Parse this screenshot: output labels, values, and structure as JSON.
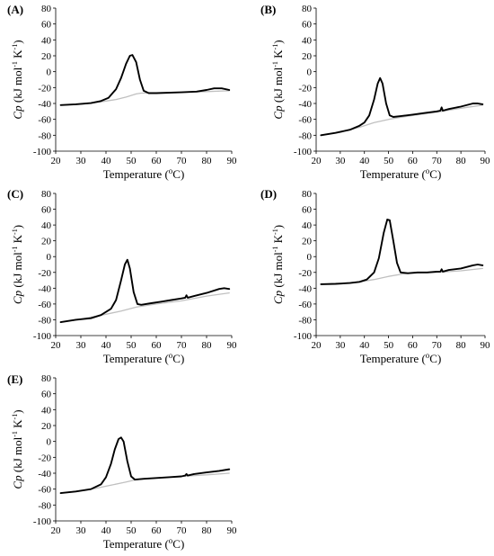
{
  "chart_data": [
    {
      "panel": "(A)",
      "type": "line",
      "xlabel": "Temperature (oC)",
      "xlabel_main": "Temperature (",
      "xlabel_sup": "o",
      "xlabel_end": "C)",
      "ylabel_italic": "Cp",
      "ylabel_rest": " (kJ mol",
      "ylabel_sup1": "-1",
      "ylabel_mid": " K",
      "ylabel_sup2": "-1",
      "ylabel_end": ")",
      "xlim": [
        20,
        90
      ],
      "ylim": [
        -100,
        80
      ],
      "xticks": [
        20,
        30,
        40,
        50,
        60,
        70,
        80,
        90
      ],
      "yticks": [
        -100,
        -80,
        -60,
        -40,
        -20,
        0,
        20,
        40,
        60,
        80
      ],
      "grid": false,
      "series": [
        {
          "role": "baseline",
          "color": "#c0c0c0",
          "x": [
            22,
            30,
            38,
            44,
            48,
            52,
            54,
            60,
            70,
            80,
            89
          ],
          "y": [
            -42,
            -41,
            -38,
            -35,
            -32,
            -28,
            -27,
            -27,
            -26,
            -25,
            -24
          ]
        },
        {
          "role": "thermogram",
          "color": "#000000",
          "x": [
            22,
            28,
            34,
            38,
            41,
            44,
            46,
            48,
            49.5,
            50.5,
            52,
            53.5,
            55,
            57,
            60,
            70,
            76,
            80,
            83,
            86,
            89
          ],
          "y": [
            -42,
            -41,
            -39.5,
            -37,
            -33,
            -22,
            -8,
            10,
            20,
            21,
            12,
            -10,
            -24,
            -27,
            -27,
            -26,
            -25,
            -23,
            -21,
            -21,
            -23
          ]
        }
      ]
    },
    {
      "panel": "(B)",
      "type": "line",
      "xlabel": "Temperature (oC)",
      "xlabel_main": "Temperature (",
      "xlabel_sup": "o",
      "xlabel_end": "C)",
      "ylabel_italic": "Cp",
      "ylabel_rest": " (kJ mol",
      "ylabel_sup1": "-1",
      "ylabel_mid": " K",
      "ylabel_sup2": "-1",
      "ylabel_end": ")",
      "xlim": [
        20,
        90
      ],
      "ylim": [
        -100,
        80
      ],
      "xticks": [
        20,
        30,
        40,
        50,
        60,
        70,
        80,
        90
      ],
      "yticks": [
        -100,
        -80,
        -60,
        -40,
        -20,
        0,
        20,
        40,
        60,
        80
      ],
      "grid": false,
      "series": [
        {
          "role": "baseline",
          "color": "#c0c0c0",
          "x": [
            22,
            30,
            38,
            44,
            50,
            54,
            60,
            70,
            80,
            89
          ],
          "y": [
            -80,
            -76,
            -70,
            -64,
            -60,
            -58,
            -55,
            -51,
            -46,
            -42
          ]
        },
        {
          "role": "thermogram",
          "color": "#000000",
          "x": [
            22,
            28,
            34,
            38,
            40,
            42,
            44,
            45.5,
            46.5,
            47.5,
            49,
            50.5,
            52,
            55,
            60,
            65,
            70,
            71.5,
            72,
            72.5,
            75,
            80,
            85,
            87,
            89
          ],
          "y": [
            -80,
            -77,
            -73,
            -68,
            -64,
            -55,
            -35,
            -15,
            -8,
            -15,
            -40,
            -55,
            -57,
            -56,
            -54,
            -52,
            -50,
            -49,
            -45,
            -49,
            -47,
            -44,
            -40,
            -40,
            -41
          ]
        }
      ]
    },
    {
      "panel": "(C)",
      "type": "line",
      "xlabel": "Temperature (oC)",
      "xlabel_main": "Temperature (",
      "xlabel_sup": "o",
      "xlabel_end": "C)",
      "ylabel_italic": "Cp",
      "ylabel_rest": " (kJ mol",
      "ylabel_sup1": "-1",
      "ylabel_mid": " K",
      "ylabel_sup2": "-1",
      "ylabel_end": ")",
      "xlim": [
        20,
        90
      ],
      "ylim": [
        -100,
        80
      ],
      "xticks": [
        20,
        30,
        40,
        50,
        60,
        70,
        80,
        90
      ],
      "yticks": [
        -100,
        -80,
        -60,
        -40,
        -20,
        0,
        20,
        40,
        60,
        80
      ],
      "grid": false,
      "series": [
        {
          "role": "baseline",
          "color": "#c0c0c0",
          "x": [
            22,
            30,
            40,
            46,
            52,
            60,
            70,
            80,
            89
          ],
          "y": [
            -83,
            -79,
            -73,
            -69,
            -64,
            -60,
            -56,
            -50,
            -46
          ]
        },
        {
          "role": "thermogram",
          "color": "#000000",
          "x": [
            22,
            28,
            34,
            38,
            42,
            44,
            46,
            47.5,
            48.5,
            49.5,
            51,
            52.5,
            54,
            58,
            62,
            66,
            70,
            71.5,
            72,
            72.5,
            75,
            80,
            85,
            87,
            89
          ],
          "y": [
            -83,
            -80,
            -78,
            -74,
            -66,
            -55,
            -30,
            -10,
            -4,
            -15,
            -45,
            -60,
            -61,
            -59,
            -57,
            -55,
            -53,
            -52,
            -49,
            -52,
            -50,
            -46,
            -41,
            -40,
            -41
          ]
        }
      ]
    },
    {
      "panel": "(D)",
      "type": "line",
      "xlabel": "Temperature (oC)",
      "xlabel_main": "Temperature (",
      "xlabel_sup": "o",
      "xlabel_end": "C)",
      "ylabel_italic": "Cp",
      "ylabel_rest": " (kJ mol",
      "ylabel_sup1": "-1",
      "ylabel_mid": " K",
      "ylabel_sup2": "-1",
      "ylabel_end": ")",
      "xlim": [
        20,
        90
      ],
      "ylim": [
        -100,
        80
      ],
      "xticks": [
        20,
        30,
        40,
        50,
        60,
        70,
        80,
        90
      ],
      "yticks": [
        -100,
        -80,
        -60,
        -40,
        -20,
        0,
        20,
        40,
        60,
        80
      ],
      "grid": false,
      "series": [
        {
          "role": "baseline",
          "color": "#c0c0c0",
          "x": [
            22,
            30,
            38,
            44,
            50,
            56,
            60,
            70,
            80,
            89
          ],
          "y": [
            -35,
            -34,
            -32,
            -29,
            -25,
            -22,
            -21,
            -20,
            -18,
            -15
          ]
        },
        {
          "role": "thermogram",
          "color": "#000000",
          "x": [
            22,
            28,
            34,
            38,
            41,
            44,
            46,
            48,
            49.5,
            50.5,
            52,
            53.5,
            55,
            58,
            62,
            66,
            70,
            71.5,
            72,
            72.5,
            75,
            80,
            85,
            87,
            89
          ],
          "y": [
            -35,
            -34.5,
            -33.5,
            -32,
            -29,
            -20,
            -2,
            30,
            47,
            46,
            20,
            -8,
            -20,
            -21,
            -20,
            -20,
            -19,
            -19,
            -16,
            -19,
            -17,
            -15,
            -11,
            -10,
            -11
          ]
        }
      ]
    },
    {
      "panel": "(E)",
      "type": "line",
      "xlabel": "Temperature (oC)",
      "xlabel_main": "Temperature (",
      "xlabel_sup": "o",
      "xlabel_end": "C)",
      "ylabel_italic": "Cp",
      "ylabel_rest": " (kJ mol",
      "ylabel_sup1": "-1",
      "ylabel_mid": " K",
      "ylabel_sup2": "-1",
      "ylabel_end": ")",
      "xlim": [
        20,
        90
      ],
      "ylim": [
        -100,
        80
      ],
      "xticks": [
        20,
        30,
        40,
        50,
        60,
        70,
        80,
        90
      ],
      "yticks": [
        -100,
        -80,
        -60,
        -40,
        -20,
        0,
        20,
        40,
        60,
        80
      ],
      "grid": false,
      "series": [
        {
          "role": "baseline",
          "color": "#c0c0c0",
          "x": [
            22,
            30,
            36,
            42,
            48,
            52,
            60,
            70,
            80,
            89
          ],
          "y": [
            -65,
            -62,
            -59,
            -55,
            -51,
            -48,
            -46,
            -44,
            -42,
            -40
          ]
        },
        {
          "role": "thermogram",
          "color": "#000000",
          "x": [
            22,
            28,
            34,
            38,
            40,
            42,
            43.5,
            45,
            46,
            47,
            48.5,
            50,
            51.5,
            55,
            60,
            65,
            70,
            71.5,
            72,
            72.5,
            75,
            80,
            85,
            89
          ],
          "y": [
            -65,
            -63,
            -60,
            -54,
            -45,
            -28,
            -10,
            3,
            5,
            0,
            -25,
            -44,
            -48,
            -47,
            -46,
            -45,
            -44,
            -43,
            -41,
            -43,
            -41,
            -39,
            -37,
            -35
          ]
        }
      ]
    }
  ]
}
